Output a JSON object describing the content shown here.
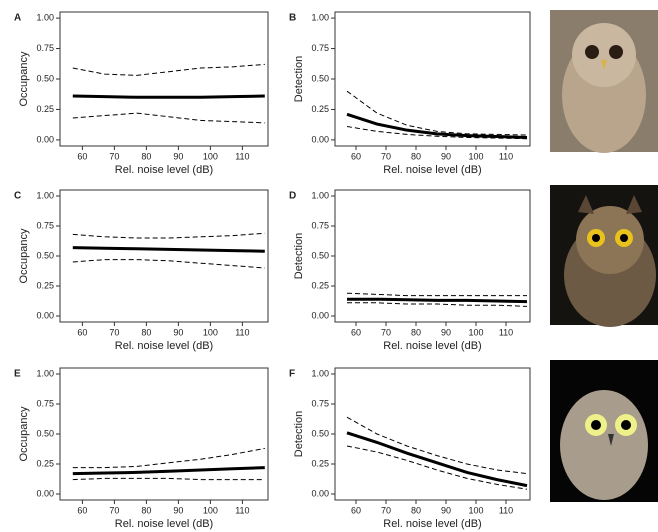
{
  "chart_data": [
    {
      "type": "line",
      "panel_label": "A",
      "ylabel": "Occupancy",
      "xlabel": "Rel. noise level (dB)",
      "x": [
        57,
        67,
        77,
        87,
        97,
        107,
        117
      ],
      "series": [
        {
          "color": "#000000",
          "style": "solid",
          "values": [
            0.36,
            0.355,
            0.35,
            0.35,
            0.35,
            0.355,
            0.36
          ]
        },
        {
          "color": "#000000",
          "style": "dashed",
          "values": [
            0.59,
            0.54,
            0.53,
            0.56,
            0.59,
            0.6,
            0.62
          ]
        },
        {
          "color": "#000000",
          "style": "dashed",
          "values": [
            0.18,
            0.2,
            0.22,
            0.19,
            0.16,
            0.15,
            0.14
          ]
        }
      ],
      "xlim": [
        53,
        118
      ],
      "xticks": [
        60,
        70,
        80,
        90,
        100,
        110
      ],
      "ylim": [
        -0.05,
        1.05
      ],
      "yticks": [
        {
          "value": 0,
          "label": "0.00"
        },
        {
          "value": 0.25,
          "label": "0.25"
        },
        {
          "value": 0.5,
          "label": "0.50"
        },
        {
          "value": 0.75,
          "label": "0.75"
        },
        {
          "value": 1,
          "label": "1.00"
        }
      ]
    },
    {
      "type": "line",
      "panel_label": "B",
      "ylabel": "Detection",
      "xlabel": "Rel. noise level (dB)",
      "x": [
        57,
        67,
        77,
        87,
        97,
        107,
        117
      ],
      "series": [
        {
          "color": "#000000",
          "style": "solid",
          "values": [
            0.21,
            0.13,
            0.08,
            0.05,
            0.035,
            0.028,
            0.02
          ]
        },
        {
          "color": "#000000",
          "style": "dashed",
          "values": [
            0.4,
            0.22,
            0.12,
            0.07,
            0.05,
            0.045,
            0.04
          ]
        },
        {
          "color": "#000000",
          "style": "dashed",
          "values": [
            0.11,
            0.07,
            0.045,
            0.03,
            0.02,
            0.015,
            0.01
          ]
        }
      ],
      "xlim": [
        53,
        118
      ],
      "xticks": [
        60,
        70,
        80,
        90,
        100,
        110
      ],
      "ylim": [
        -0.05,
        1.05
      ],
      "yticks": [
        {
          "value": 0,
          "label": "0.00"
        },
        {
          "value": 0.25,
          "label": "0.25"
        },
        {
          "value": 0.5,
          "label": "0.50"
        },
        {
          "value": 0.75,
          "label": "0.75"
        },
        {
          "value": 1,
          "label": "1.00"
        }
      ]
    },
    {
      "type": "line",
      "panel_label": "C",
      "ylabel": "Occupancy",
      "xlabel": "Rel. noise level (dB)",
      "x": [
        57,
        67,
        77,
        87,
        97,
        107,
        117
      ],
      "series": [
        {
          "color": "#000000",
          "style": "solid",
          "values": [
            0.57,
            0.565,
            0.56,
            0.555,
            0.55,
            0.545,
            0.54
          ]
        },
        {
          "color": "#000000",
          "style": "dashed",
          "values": [
            0.68,
            0.66,
            0.65,
            0.65,
            0.66,
            0.67,
            0.69
          ]
        },
        {
          "color": "#000000",
          "style": "dashed",
          "values": [
            0.45,
            0.47,
            0.47,
            0.46,
            0.44,
            0.42,
            0.4
          ]
        }
      ],
      "xlim": [
        53,
        118
      ],
      "xticks": [
        60,
        70,
        80,
        90,
        100,
        110
      ],
      "ylim": [
        -0.05,
        1.05
      ],
      "yticks": [
        {
          "value": 0,
          "label": "0.00"
        },
        {
          "value": 0.25,
          "label": "0.25"
        },
        {
          "value": 0.5,
          "label": "0.50"
        },
        {
          "value": 0.75,
          "label": "0.75"
        },
        {
          "value": 1,
          "label": "1.00"
        }
      ]
    },
    {
      "type": "line",
      "panel_label": "D",
      "ylabel": "Detection",
      "xlabel": "Rel. noise level (dB)",
      "x": [
        57,
        67,
        77,
        87,
        97,
        107,
        117
      ],
      "series": [
        {
          "color": "#000000",
          "style": "solid",
          "values": [
            0.14,
            0.14,
            0.135,
            0.13,
            0.13,
            0.125,
            0.12
          ]
        },
        {
          "color": "#000000",
          "style": "dashed",
          "values": [
            0.19,
            0.18,
            0.17,
            0.17,
            0.17,
            0.17,
            0.17
          ]
        },
        {
          "color": "#000000",
          "style": "dashed",
          "values": [
            0.11,
            0.11,
            0.1,
            0.1,
            0.09,
            0.09,
            0.08
          ]
        }
      ],
      "xlim": [
        53,
        118
      ],
      "xticks": [
        60,
        70,
        80,
        90,
        100,
        110
      ],
      "ylim": [
        -0.05,
        1.05
      ],
      "yticks": [
        {
          "value": 0,
          "label": "0.00"
        },
        {
          "value": 0.25,
          "label": "0.25"
        },
        {
          "value": 0.5,
          "label": "0.50"
        },
        {
          "value": 0.75,
          "label": "0.75"
        },
        {
          "value": 1,
          "label": "1.00"
        }
      ]
    },
    {
      "type": "line",
      "panel_label": "E",
      "ylabel": "Occupancy",
      "xlabel": "Rel. noise level (dB)",
      "x": [
        57,
        67,
        77,
        87,
        97,
        107,
        117
      ],
      "series": [
        {
          "color": "#000000",
          "style": "solid",
          "values": [
            0.17,
            0.175,
            0.18,
            0.19,
            0.2,
            0.21,
            0.22
          ]
        },
        {
          "color": "#000000",
          "style": "dashed",
          "values": [
            0.22,
            0.22,
            0.23,
            0.26,
            0.29,
            0.33,
            0.38
          ]
        },
        {
          "color": "#000000",
          "style": "dashed",
          "values": [
            0.12,
            0.13,
            0.13,
            0.13,
            0.12,
            0.12,
            0.12
          ]
        }
      ],
      "xlim": [
        53,
        118
      ],
      "xticks": [
        60,
        70,
        80,
        90,
        100,
        110
      ],
      "ylim": [
        -0.05,
        1.05
      ],
      "yticks": [
        {
          "value": 0,
          "label": "0.00"
        },
        {
          "value": 0.25,
          "label": "0.25"
        },
        {
          "value": 0.5,
          "label": "0.50"
        },
        {
          "value": 0.75,
          "label": "0.75"
        },
        {
          "value": 1,
          "label": "1.00"
        }
      ]
    },
    {
      "type": "line",
      "panel_label": "F",
      "ylabel": "Detection",
      "xlabel": "Rel. noise level (dB)",
      "x": [
        57,
        67,
        77,
        87,
        97,
        107,
        117
      ],
      "series": [
        {
          "color": "#000000",
          "style": "solid",
          "values": [
            0.51,
            0.43,
            0.34,
            0.26,
            0.18,
            0.12,
            0.07
          ]
        },
        {
          "color": "#000000",
          "style": "dashed",
          "values": [
            0.64,
            0.5,
            0.4,
            0.32,
            0.25,
            0.2,
            0.17
          ]
        },
        {
          "color": "#000000",
          "style": "dashed",
          "values": [
            0.4,
            0.35,
            0.28,
            0.2,
            0.13,
            0.08,
            0.04
          ]
        }
      ],
      "xlim": [
        53,
        118
      ],
      "xticks": [
        60,
        70,
        80,
        90,
        100,
        110
      ],
      "ylim": [
        -0.05,
        1.05
      ],
      "yticks": [
        {
          "value": 0,
          "label": "0.00"
        },
        {
          "value": 0.25,
          "label": "0.25"
        },
        {
          "value": 0.5,
          "label": "0.50"
        },
        {
          "value": 0.75,
          "label": "0.75"
        },
        {
          "value": 1,
          "label": "1.00"
        }
      ]
    }
  ]
}
